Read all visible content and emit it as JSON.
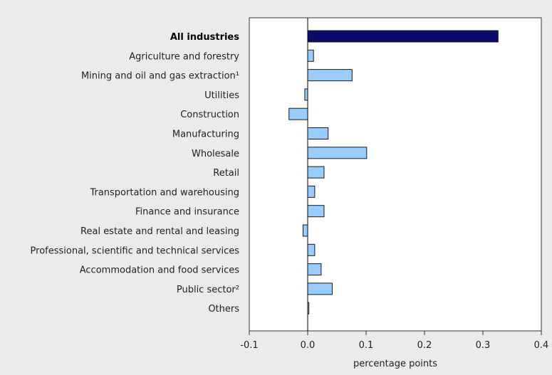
{
  "chart_data": {
    "type": "bar",
    "orientation": "horizontal",
    "categories": [
      "All industries",
      "Agriculture and forestry",
      "Mining and oil and gas extraction¹",
      "Utilities",
      "Construction",
      "Manufacturing",
      "Wholesale",
      "Retail",
      "Transportation and warehousing",
      "Finance and insurance",
      "Real estate and rental and leasing",
      "Professional, scientific and technical services",
      "Accommodation and food services",
      "Public sector²",
      "Others"
    ],
    "values": [
      0.326,
      0.01,
      0.076,
      -0.005,
      -0.032,
      0.035,
      0.101,
      0.028,
      0.012,
      0.028,
      -0.008,
      0.012,
      0.023,
      0.042,
      0.002
    ],
    "highlight_index": 0,
    "xlabel": "percentage points",
    "xlim": [
      -0.1,
      0.4
    ],
    "xticks": [
      "-0.1",
      "0.0",
      "0.1",
      "0.2",
      "0.3",
      "0.4"
    ],
    "xtick_values": [
      -0.1,
      0.0,
      0.1,
      0.2,
      0.3,
      0.4
    ],
    "grid": false,
    "colors": {
      "highlight_bar": "#0b0b6e",
      "bar": "#99ccff",
      "bar_stroke": "#1a1a1a",
      "plot_background": "#ffffff",
      "page_background": "#ebebeb"
    }
  }
}
